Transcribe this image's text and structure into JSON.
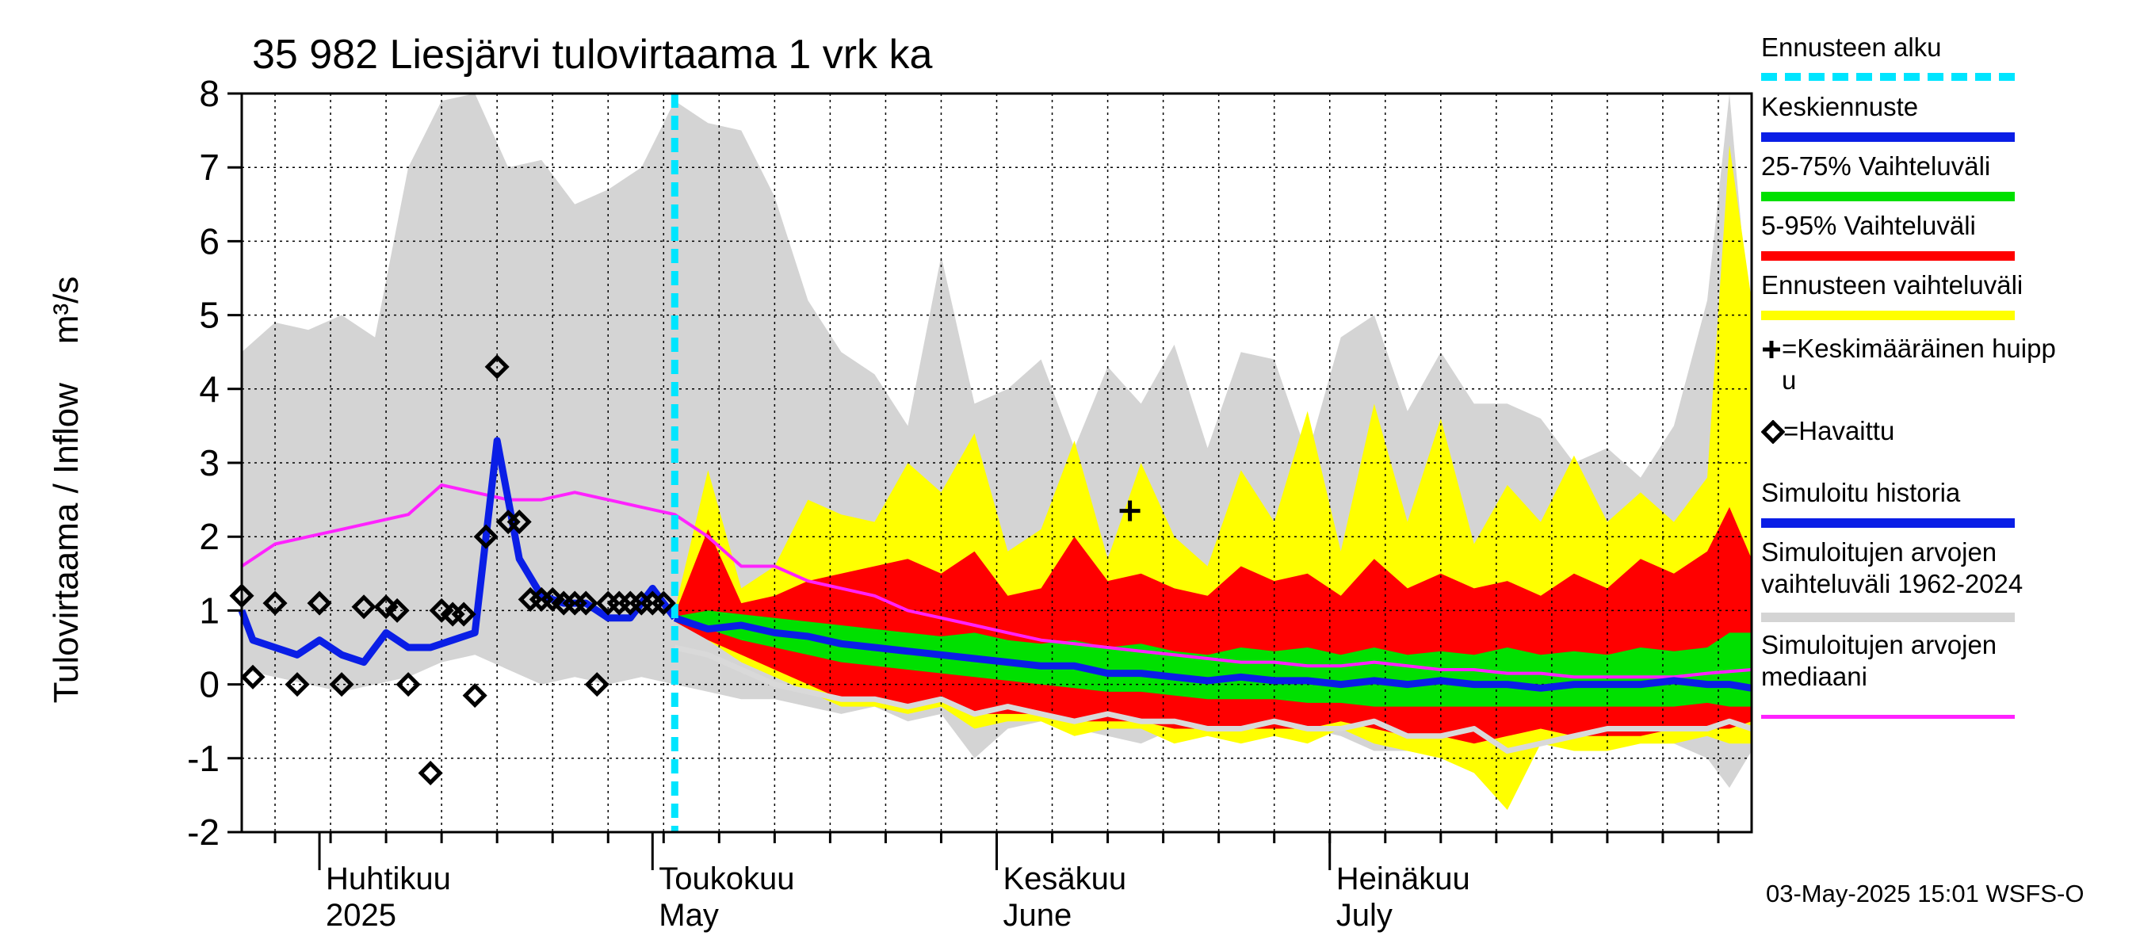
{
  "chart_data": {
    "type": "area",
    "title": "35 982 Liesjärvi tulovirtaama 1 vrk ka",
    "ylabel": "Tulovirtaama / Inflow    m³/s",
    "ylim": [
      -2,
      8
    ],
    "yticks": [
      -2,
      -1,
      0,
      1,
      2,
      3,
      4,
      5,
      6,
      7,
      8
    ],
    "xlim": [
      "2025-03-25",
      "2025-08-08"
    ],
    "month_labels": [
      {
        "fi": "Huhtikuu",
        "en": "2025",
        "date": "2025-04-01"
      },
      {
        "fi": "Toukokuu",
        "en": "May",
        "date": "2025-05-01"
      },
      {
        "fi": "Kesäkuu",
        "en": "June",
        "date": "2025-06-01"
      },
      {
        "fi": "Heinäkuu",
        "en": "July",
        "date": "2025-07-01"
      }
    ],
    "forecast_start": "2025-05-03",
    "grid": true,
    "series_hist_range": {
      "x": [
        "2025-03-25",
        "2025-03-28",
        "2025-03-31",
        "2025-04-03",
        "2025-04-06",
        "2025-04-09",
        "2025-04-12",
        "2025-04-15",
        "2025-04-18",
        "2025-04-21",
        "2025-04-24",
        "2025-04-27",
        "2025-04-30",
        "2025-05-03",
        "2025-05-06",
        "2025-05-09",
        "2025-05-12",
        "2025-05-15",
        "2025-05-18",
        "2025-05-21",
        "2025-05-24",
        "2025-05-27",
        "2025-05-30",
        "2025-06-02",
        "2025-06-05",
        "2025-06-08",
        "2025-06-11",
        "2025-06-14",
        "2025-06-17",
        "2025-06-20",
        "2025-06-23",
        "2025-06-26",
        "2025-06-29",
        "2025-07-02",
        "2025-07-05",
        "2025-07-08",
        "2025-07-11",
        "2025-07-14",
        "2025-07-17",
        "2025-07-20",
        "2025-07-23",
        "2025-07-26",
        "2025-07-29",
        "2025-08-01",
        "2025-08-04",
        "2025-08-06",
        "2025-08-08"
      ],
      "upper": [
        4.5,
        4.9,
        4.8,
        5.0,
        4.7,
        7.0,
        7.9,
        8.0,
        7.0,
        7.1,
        6.5,
        6.7,
        7.0,
        7.9,
        7.6,
        7.5,
        6.6,
        5.2,
        4.5,
        4.2,
        3.5,
        5.8,
        3.8,
        4.0,
        4.4,
        3.2,
        4.3,
        3.8,
        4.6,
        3.2,
        4.5,
        4.4,
        3.1,
        4.7,
        5.0,
        3.7,
        4.5,
        3.8,
        3.8,
        3.6,
        3.0,
        3.2,
        2.8,
        3.5,
        5.2,
        8.0,
        4.6
      ],
      "lower": [
        0.2,
        0.1,
        0.0,
        -0.1,
        0.0,
        0.1,
        0.3,
        0.4,
        0.2,
        0.0,
        0.1,
        0.0,
        0.1,
        0.0,
        -0.1,
        -0.2,
        -0.2,
        -0.3,
        -0.4,
        -0.3,
        -0.5,
        -0.4,
        -1.0,
        -0.6,
        -0.5,
        -0.6,
        -0.7,
        -0.8,
        -0.6,
        -0.7,
        -0.6,
        -0.7,
        -0.6,
        -0.7,
        -0.9,
        -0.9,
        -0.8,
        -0.8,
        -0.8,
        -0.7,
        -0.7,
        -0.7,
        -0.8,
        -0.8,
        -1.0,
        -1.4,
        -0.9
      ]
    },
    "series_forecast_env": {
      "x": [
        "2025-05-03",
        "2025-05-06",
        "2025-05-09",
        "2025-05-12",
        "2025-05-15",
        "2025-05-18",
        "2025-05-21",
        "2025-05-24",
        "2025-05-27",
        "2025-05-30",
        "2025-06-02",
        "2025-06-05",
        "2025-06-08",
        "2025-06-11",
        "2025-06-14",
        "2025-06-17",
        "2025-06-20",
        "2025-06-23",
        "2025-06-26",
        "2025-06-29",
        "2025-07-02",
        "2025-07-05",
        "2025-07-08",
        "2025-07-11",
        "2025-07-14",
        "2025-07-17",
        "2025-07-20",
        "2025-07-23",
        "2025-07-26",
        "2025-07-29",
        "2025-08-01",
        "2025-08-04",
        "2025-08-06",
        "2025-08-08"
      ],
      "upper": [
        1.0,
        2.9,
        1.3,
        1.6,
        2.5,
        2.3,
        2.2,
        3.0,
        2.6,
        3.4,
        1.8,
        2.1,
        3.3,
        1.7,
        3.0,
        2.0,
        1.6,
        2.9,
        2.2,
        3.7,
        1.8,
        3.8,
        2.2,
        3.6,
        1.9,
        2.7,
        2.2,
        3.1,
        2.2,
        2.6,
        2.2,
        2.8,
        7.3,
        5.2
      ],
      "lower": [
        0.9,
        0.6,
        0.3,
        0.1,
        -0.1,
        -0.3,
        -0.3,
        -0.4,
        -0.3,
        -0.6,
        -0.5,
        -0.5,
        -0.7,
        -0.6,
        -0.6,
        -0.8,
        -0.7,
        -0.8,
        -0.7,
        -0.8,
        -0.6,
        -0.8,
        -0.9,
        -1.0,
        -1.2,
        -1.7,
        -0.8,
        -0.9,
        -0.9,
        -0.8,
        -0.8,
        -0.7,
        -0.8,
        -0.8
      ]
    },
    "series_p5_95": {
      "x": [
        "2025-05-03",
        "2025-05-06",
        "2025-05-09",
        "2025-05-12",
        "2025-05-15",
        "2025-05-18",
        "2025-05-21",
        "2025-05-24",
        "2025-05-27",
        "2025-05-30",
        "2025-06-02",
        "2025-06-05",
        "2025-06-08",
        "2025-06-11",
        "2025-06-14",
        "2025-06-17",
        "2025-06-20",
        "2025-06-23",
        "2025-06-26",
        "2025-06-29",
        "2025-07-02",
        "2025-07-05",
        "2025-07-08",
        "2025-07-11",
        "2025-07-14",
        "2025-07-17",
        "2025-07-20",
        "2025-07-23",
        "2025-07-26",
        "2025-07-29",
        "2025-08-01",
        "2025-08-04",
        "2025-08-06",
        "2025-08-08"
      ],
      "upper": [
        0.95,
        2.1,
        1.1,
        1.2,
        1.4,
        1.5,
        1.6,
        1.7,
        1.5,
        1.8,
        1.2,
        1.3,
        2.0,
        1.4,
        1.5,
        1.3,
        1.2,
        1.6,
        1.4,
        1.5,
        1.2,
        1.7,
        1.3,
        1.5,
        1.3,
        1.4,
        1.2,
        1.5,
        1.3,
        1.7,
        1.5,
        1.8,
        2.4,
        1.7
      ],
      "lower": [
        0.85,
        0.6,
        0.4,
        0.2,
        0.0,
        -0.2,
        -0.2,
        -0.3,
        -0.2,
        -0.4,
        -0.4,
        -0.4,
        -0.5,
        -0.5,
        -0.5,
        -0.6,
        -0.6,
        -0.6,
        -0.6,
        -0.6,
        -0.5,
        -0.6,
        -0.7,
        -0.7,
        -0.8,
        -0.7,
        -0.6,
        -0.7,
        -0.7,
        -0.7,
        -0.6,
        -0.6,
        -0.6,
        -0.5
      ]
    },
    "series_p25_75": {
      "x": [
        "2025-05-03",
        "2025-05-06",
        "2025-05-09",
        "2025-05-12",
        "2025-05-15",
        "2025-05-18",
        "2025-05-21",
        "2025-05-24",
        "2025-05-27",
        "2025-05-30",
        "2025-06-02",
        "2025-06-05",
        "2025-06-08",
        "2025-06-11",
        "2025-06-14",
        "2025-06-17",
        "2025-06-20",
        "2025-06-23",
        "2025-06-26",
        "2025-06-29",
        "2025-07-02",
        "2025-07-05",
        "2025-07-08",
        "2025-07-11",
        "2025-07-14",
        "2025-07-17",
        "2025-07-20",
        "2025-07-23",
        "2025-07-26",
        "2025-07-29",
        "2025-08-01",
        "2025-08-04",
        "2025-08-06",
        "2025-08-08"
      ],
      "upper": [
        0.92,
        1.0,
        0.95,
        0.9,
        0.85,
        0.8,
        0.75,
        0.7,
        0.65,
        0.7,
        0.6,
        0.55,
        0.6,
        0.5,
        0.55,
        0.45,
        0.4,
        0.5,
        0.45,
        0.5,
        0.4,
        0.5,
        0.4,
        0.45,
        0.4,
        0.5,
        0.4,
        0.45,
        0.4,
        0.5,
        0.45,
        0.5,
        0.7,
        0.7
      ],
      "lower": [
        0.88,
        0.75,
        0.6,
        0.5,
        0.4,
        0.3,
        0.25,
        0.2,
        0.15,
        0.1,
        0.05,
        0.0,
        -0.05,
        -0.1,
        -0.1,
        -0.15,
        -0.2,
        -0.2,
        -0.2,
        -0.25,
        -0.25,
        -0.3,
        -0.3,
        -0.3,
        -0.3,
        -0.3,
        -0.3,
        -0.3,
        -0.3,
        -0.3,
        -0.3,
        -0.25,
        -0.3,
        -0.3
      ]
    },
    "series_mean_forecast": {
      "x": [
        "2025-05-03",
        "2025-05-06",
        "2025-05-09",
        "2025-05-12",
        "2025-05-15",
        "2025-05-18",
        "2025-05-21",
        "2025-05-24",
        "2025-05-27",
        "2025-05-30",
        "2025-06-02",
        "2025-06-05",
        "2025-06-08",
        "2025-06-11",
        "2025-06-14",
        "2025-06-17",
        "2025-06-20",
        "2025-06-23",
        "2025-06-26",
        "2025-06-29",
        "2025-07-02",
        "2025-07-05",
        "2025-07-08",
        "2025-07-11",
        "2025-07-14",
        "2025-07-17",
        "2025-07-20",
        "2025-07-23",
        "2025-07-26",
        "2025-07-29",
        "2025-08-01",
        "2025-08-04",
        "2025-08-06",
        "2025-08-08"
      ],
      "values": [
        0.9,
        0.75,
        0.8,
        0.7,
        0.65,
        0.55,
        0.5,
        0.45,
        0.4,
        0.35,
        0.3,
        0.25,
        0.25,
        0.15,
        0.15,
        0.1,
        0.05,
        0.1,
        0.05,
        0.05,
        0.0,
        0.05,
        0.0,
        0.05,
        0.0,
        0.0,
        -0.05,
        0.0,
        0.0,
        0.0,
        0.05,
        0.0,
        0.0,
        -0.05
      ]
    },
    "series_sim_history": {
      "x": [
        "2025-03-25",
        "2025-03-26",
        "2025-03-28",
        "2025-03-30",
        "2025-04-01",
        "2025-04-03",
        "2025-04-05",
        "2025-04-07",
        "2025-04-09",
        "2025-04-11",
        "2025-04-13",
        "2025-04-15",
        "2025-04-17",
        "2025-04-19",
        "2025-04-21",
        "2025-04-23",
        "2025-04-25",
        "2025-04-27",
        "2025-04-29",
        "2025-05-01",
        "2025-05-03"
      ],
      "values": [
        1.0,
        0.6,
        0.5,
        0.4,
        0.6,
        0.4,
        0.3,
        0.7,
        0.5,
        0.5,
        0.6,
        0.7,
        3.3,
        1.7,
        1.2,
        1.1,
        1.1,
        0.9,
        0.9,
        1.3,
        0.9
      ]
    },
    "series_median": {
      "x": [
        "2025-03-25",
        "2025-03-28",
        "2025-03-31",
        "2025-04-03",
        "2025-04-06",
        "2025-04-09",
        "2025-04-12",
        "2025-04-15",
        "2025-04-18",
        "2025-04-21",
        "2025-04-24",
        "2025-04-27",
        "2025-04-30",
        "2025-05-03",
        "2025-05-06",
        "2025-05-09",
        "2025-05-12",
        "2025-05-15",
        "2025-05-18",
        "2025-05-21",
        "2025-05-24",
        "2025-05-27",
        "2025-05-30",
        "2025-06-02",
        "2025-06-05",
        "2025-06-08",
        "2025-06-11",
        "2025-06-14",
        "2025-06-17",
        "2025-06-20",
        "2025-06-23",
        "2025-06-26",
        "2025-06-29",
        "2025-07-02",
        "2025-07-05",
        "2025-07-08",
        "2025-07-11",
        "2025-07-14",
        "2025-07-17",
        "2025-07-20",
        "2025-07-23",
        "2025-07-26",
        "2025-07-29",
        "2025-08-01",
        "2025-08-04",
        "2025-08-08"
      ],
      "values": [
        1.6,
        1.9,
        2.0,
        2.1,
        2.2,
        2.3,
        2.7,
        2.6,
        2.5,
        2.5,
        2.6,
        2.5,
        2.4,
        2.3,
        2.0,
        1.6,
        1.6,
        1.4,
        1.3,
        1.2,
        1.0,
        0.9,
        0.8,
        0.7,
        0.6,
        0.55,
        0.5,
        0.45,
        0.4,
        0.35,
        0.3,
        0.3,
        0.25,
        0.25,
        0.3,
        0.25,
        0.2,
        0.2,
        0.15,
        0.15,
        0.1,
        0.1,
        0.1,
        0.1,
        0.15,
        0.2
      ]
    },
    "series_sim_range_low": {
      "x": [
        "2025-05-03",
        "2025-05-06",
        "2025-05-09",
        "2025-05-12",
        "2025-05-15",
        "2025-05-18",
        "2025-05-21",
        "2025-05-24",
        "2025-05-27",
        "2025-05-30",
        "2025-06-02",
        "2025-06-05",
        "2025-06-08",
        "2025-06-11",
        "2025-06-14",
        "2025-06-17",
        "2025-06-20",
        "2025-06-23",
        "2025-06-26",
        "2025-06-29",
        "2025-07-02",
        "2025-07-05",
        "2025-07-08",
        "2025-07-11",
        "2025-07-14",
        "2025-07-17",
        "2025-07-20",
        "2025-07-23",
        "2025-07-26",
        "2025-07-29",
        "2025-08-01",
        "2025-08-04",
        "2025-08-06",
        "2025-08-08"
      ],
      "values": [
        0.5,
        0.4,
        0.2,
        0.0,
        -0.1,
        -0.2,
        -0.2,
        -0.3,
        -0.2,
        -0.4,
        -0.3,
        -0.4,
        -0.5,
        -0.4,
        -0.5,
        -0.5,
        -0.6,
        -0.6,
        -0.5,
        -0.6,
        -0.6,
        -0.5,
        -0.7,
        -0.7,
        -0.6,
        -0.9,
        -0.8,
        -0.7,
        -0.6,
        -0.6,
        -0.6,
        -0.6,
        -0.5,
        -0.6
      ]
    },
    "observed": {
      "x": [
        "2025-03-25",
        "2025-03-26",
        "2025-03-28",
        "2025-03-30",
        "2025-04-01",
        "2025-04-03",
        "2025-04-05",
        "2025-04-07",
        "2025-04-08",
        "2025-04-09",
        "2025-04-11",
        "2025-04-12",
        "2025-04-13",
        "2025-04-14",
        "2025-04-15",
        "2025-04-16",
        "2025-04-17",
        "2025-04-18",
        "2025-04-19",
        "2025-04-20",
        "2025-04-21",
        "2025-04-22",
        "2025-04-23",
        "2025-04-24",
        "2025-04-25",
        "2025-04-26",
        "2025-04-27",
        "2025-04-28",
        "2025-04-29",
        "2025-04-30",
        "2025-05-01",
        "2025-05-02"
      ],
      "values": [
        1.2,
        0.1,
        1.1,
        0.0,
        1.1,
        0.0,
        1.05,
        1.05,
        1.0,
        0.0,
        -1.2,
        1.0,
        0.95,
        0.95,
        -0.15,
        2.0,
        4.3,
        2.2,
        2.2,
        1.15,
        1.15,
        1.15,
        1.1,
        1.1,
        1.1,
        0.0,
        1.1,
        1.1,
        1.1,
        1.1,
        1.1,
        1.1
      ]
    },
    "mean_peak": {
      "x": "2025-06-13",
      "value": 2.35
    },
    "colors": {
      "hist_range": "#d4d4d4",
      "forecast_env": "#ffff00",
      "p5_95": "#ff0000",
      "p25_75": "#00e000",
      "mean_forecast": "#0a1ee6",
      "sim_history": "#0a1ee6",
      "median": "#ff22ff",
      "forecast_start": "#00e5ff"
    }
  },
  "legend": {
    "forecast_start": "Ennusteen alku",
    "mean_forecast": "Keskiennuste",
    "p25_75": "25-75% Vaihteluväli",
    "p5_95": "5-95% Vaihteluväli",
    "forecast_env": "Ennusteen vaihteluväli",
    "mean_peak": "=Keskimääräinen huipp\nu",
    "observed": "=Havaittu",
    "sim_history": "Simuloitu historia",
    "hist_range": "Simuloitujen arvojen\nvaihteluväli 1962-2024",
    "median": "Simuloitujen arvojen\nmediaani"
  },
  "footer": "03-May-2025 15:01 WSFS-O"
}
